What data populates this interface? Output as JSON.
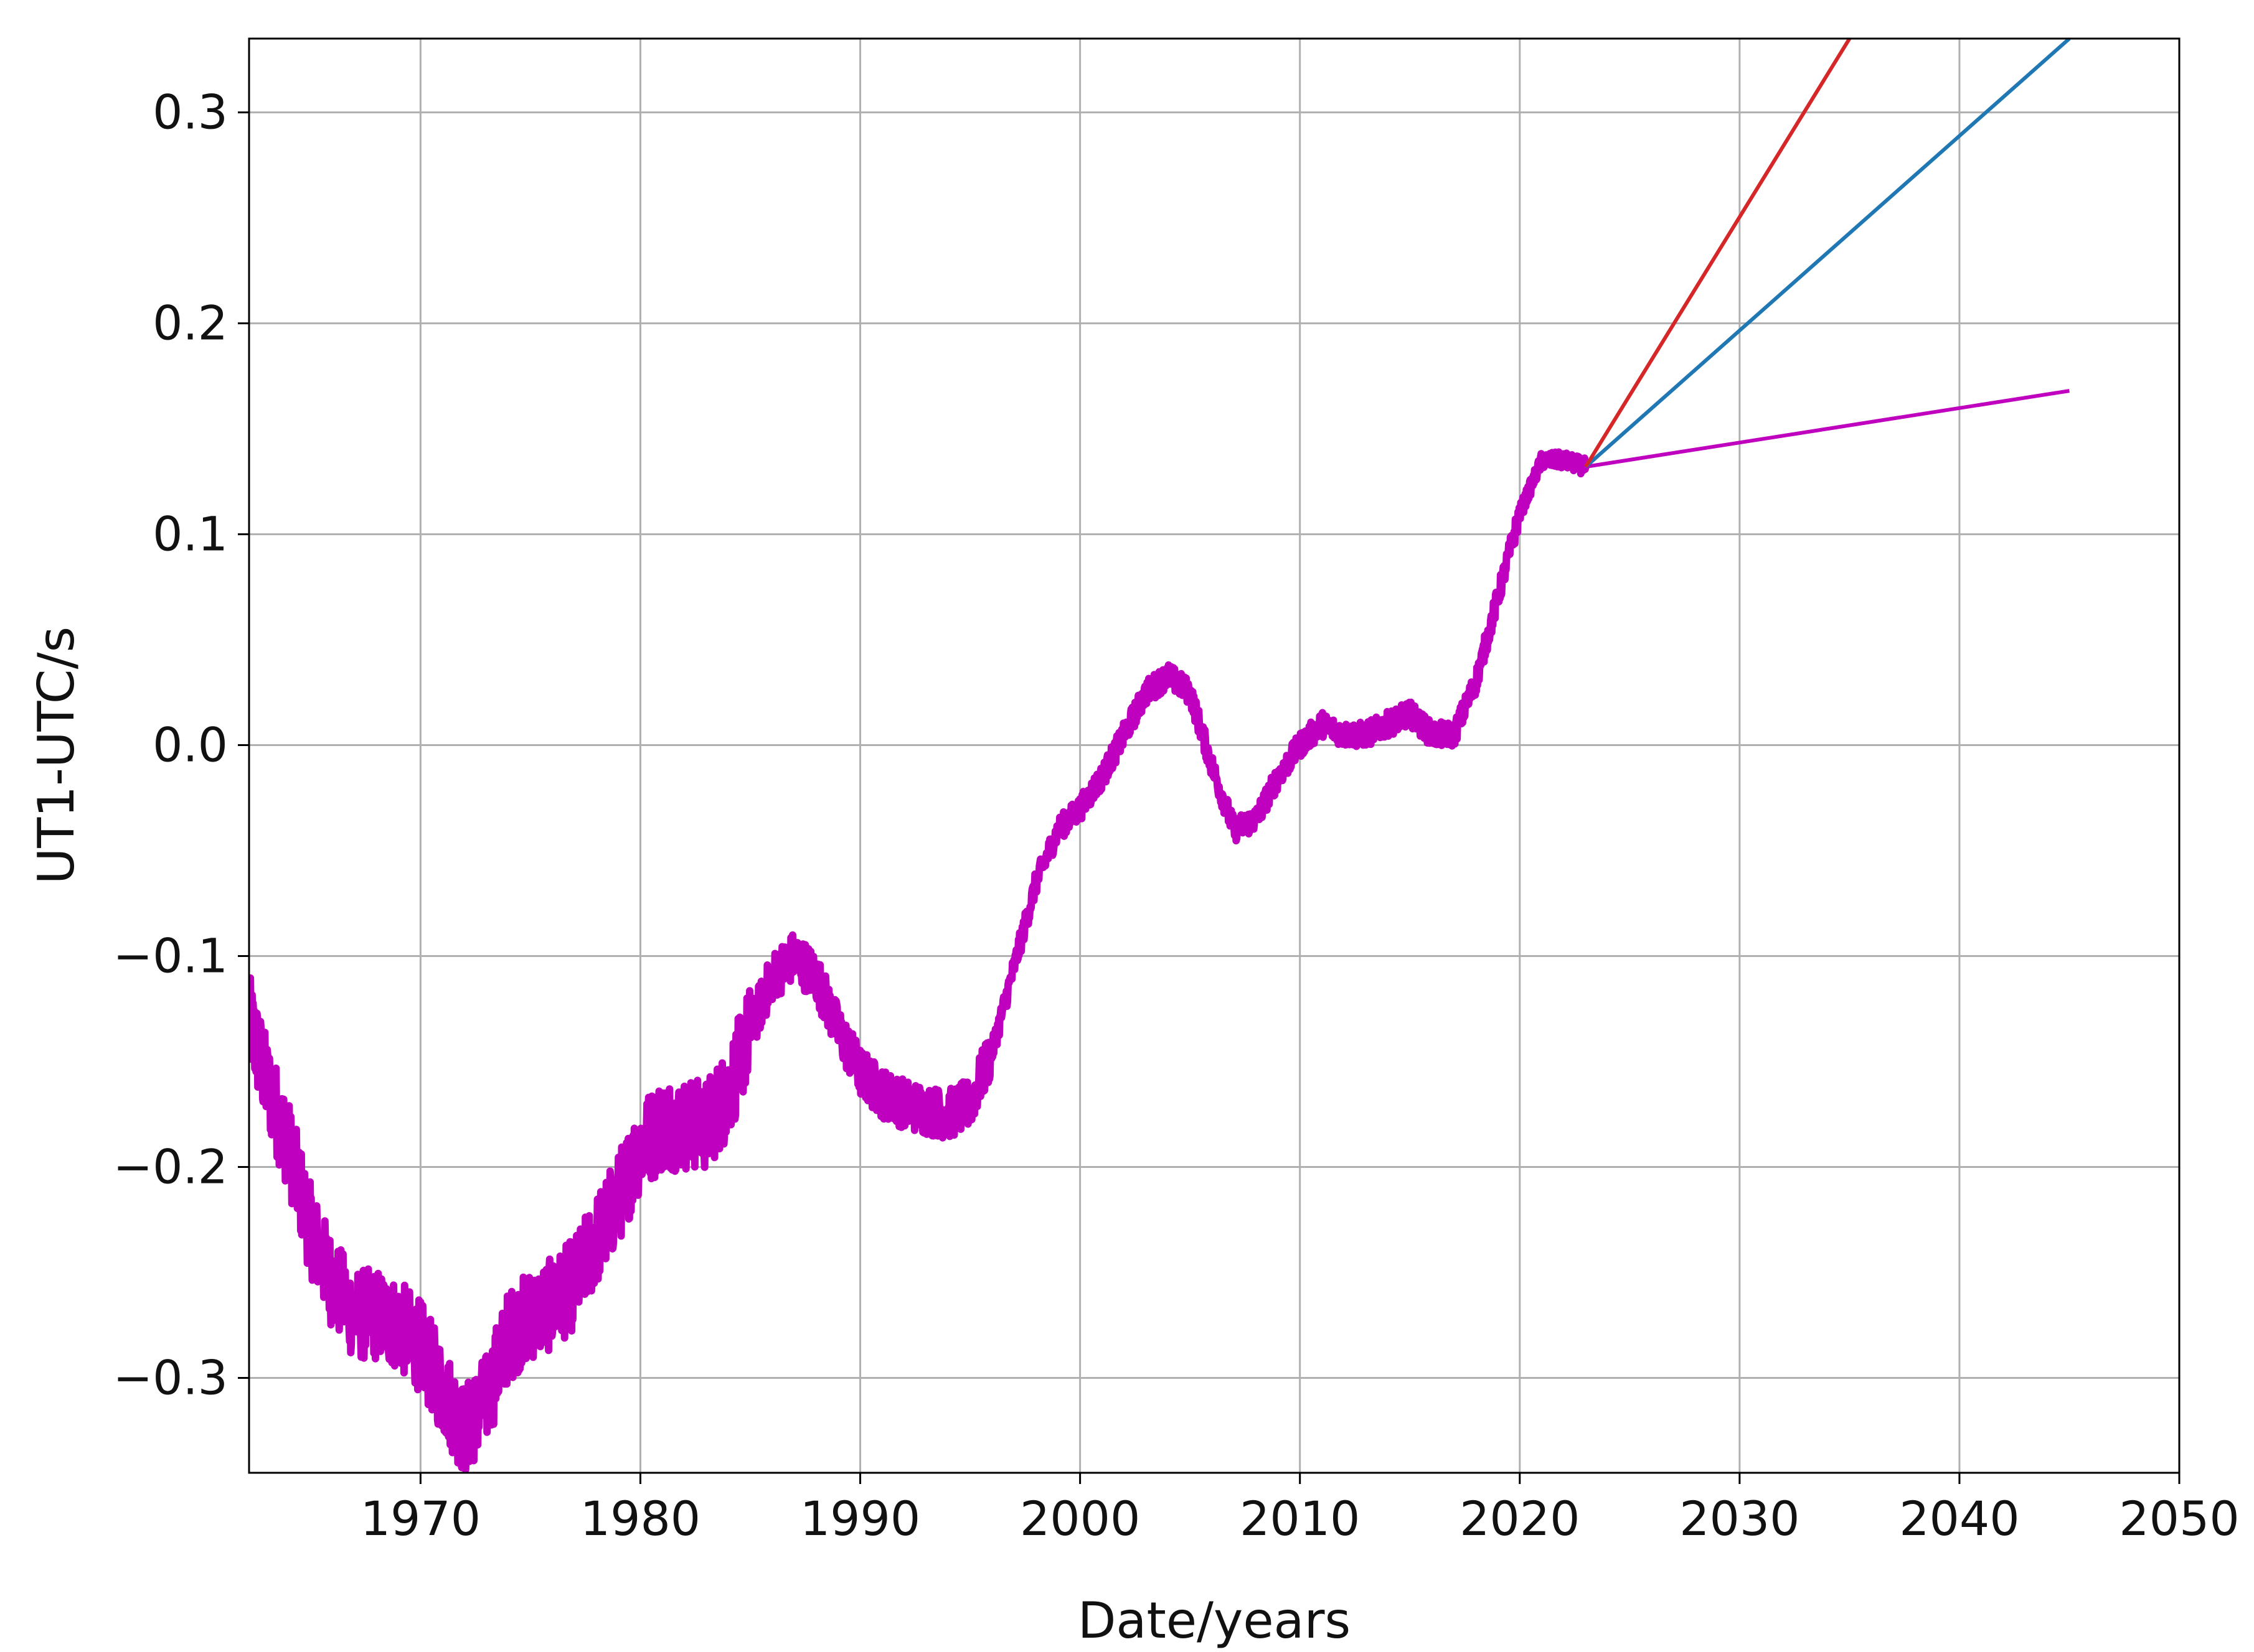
{
  "chart_data": {
    "type": "line",
    "xlabel": "Date/years",
    "ylabel": "UT1-UTC/s",
    "xlim": [
      1962.2,
      2050
    ],
    "ylim": [
      -0.345,
      0.335
    ],
    "xticks": [
      1970,
      1980,
      1990,
      2000,
      2010,
      2020,
      2030,
      2040,
      2050
    ],
    "yticks": [
      -0.3,
      -0.2,
      -0.1,
      0.0,
      0.1,
      0.2,
      0.3
    ],
    "xtick_labels": [
      "1970",
      "1980",
      "1990",
      "2000",
      "2010",
      "2020",
      "2030",
      "2040",
      "2050"
    ],
    "ytick_labels": [
      "−0.3",
      "−0.2",
      "−0.1",
      "0.0",
      "0.1",
      "0.2",
      "0.3"
    ],
    "grid": true,
    "series": [
      {
        "color": "#bf00bf",
        "style": "noisy-observed",
        "x": [
          1962.2,
          1963,
          1964,
          1965,
          1966,
          1967,
          1968,
          1969,
          1970,
          1971,
          1972,
          1973,
          1974,
          1975,
          1976,
          1977,
          1978,
          1979,
          1980,
          1981,
          1982,
          1983,
          1984,
          1985,
          1986,
          1987,
          1988,
          1989,
          1990,
          1991,
          1992,
          1993,
          1994,
          1995,
          1996,
          1997,
          1998,
          1999,
          2000,
          2001,
          2002,
          2003,
          2004,
          2005,
          2006,
          2007,
          2008,
          2009,
          2010,
          2011,
          2012,
          2013,
          2014,
          2015,
          2016,
          2017,
          2018,
          2019,
          2020,
          2021,
          2022,
          2023
        ],
        "y": [
          -0.13,
          -0.16,
          -0.19,
          -0.23,
          -0.255,
          -0.27,
          -0.27,
          -0.275,
          -0.285,
          -0.305,
          -0.325,
          -0.31,
          -0.28,
          -0.27,
          -0.265,
          -0.255,
          -0.235,
          -0.215,
          -0.19,
          -0.18,
          -0.18,
          -0.18,
          -0.165,
          -0.135,
          -0.11,
          -0.1,
          -0.11,
          -0.135,
          -0.155,
          -0.165,
          -0.17,
          -0.173,
          -0.175,
          -0.17,
          -0.145,
          -0.105,
          -0.065,
          -0.04,
          -0.03,
          -0.015,
          0.005,
          0.025,
          0.033,
          0.025,
          -0.01,
          -0.04,
          -0.035,
          -0.015,
          0.0,
          0.01,
          0.005,
          0.005,
          0.01,
          0.015,
          0.005,
          0.005,
          0.03,
          0.07,
          0.11,
          0.135,
          0.135,
          0.132
        ]
      },
      {
        "color": "#bf00bf",
        "style": "projection",
        "x": [
          2023,
          2045
        ],
        "y": [
          0.132,
          0.168
        ]
      },
      {
        "color": "#1f77b4",
        "style": "projection",
        "x": [
          2023,
          2045
        ],
        "y": [
          0.132,
          0.335
        ]
      },
      {
        "color": "#d62728",
        "style": "projection",
        "x": [
          2023,
          2035
        ],
        "y": [
          0.132,
          0.335
        ]
      }
    ]
  }
}
